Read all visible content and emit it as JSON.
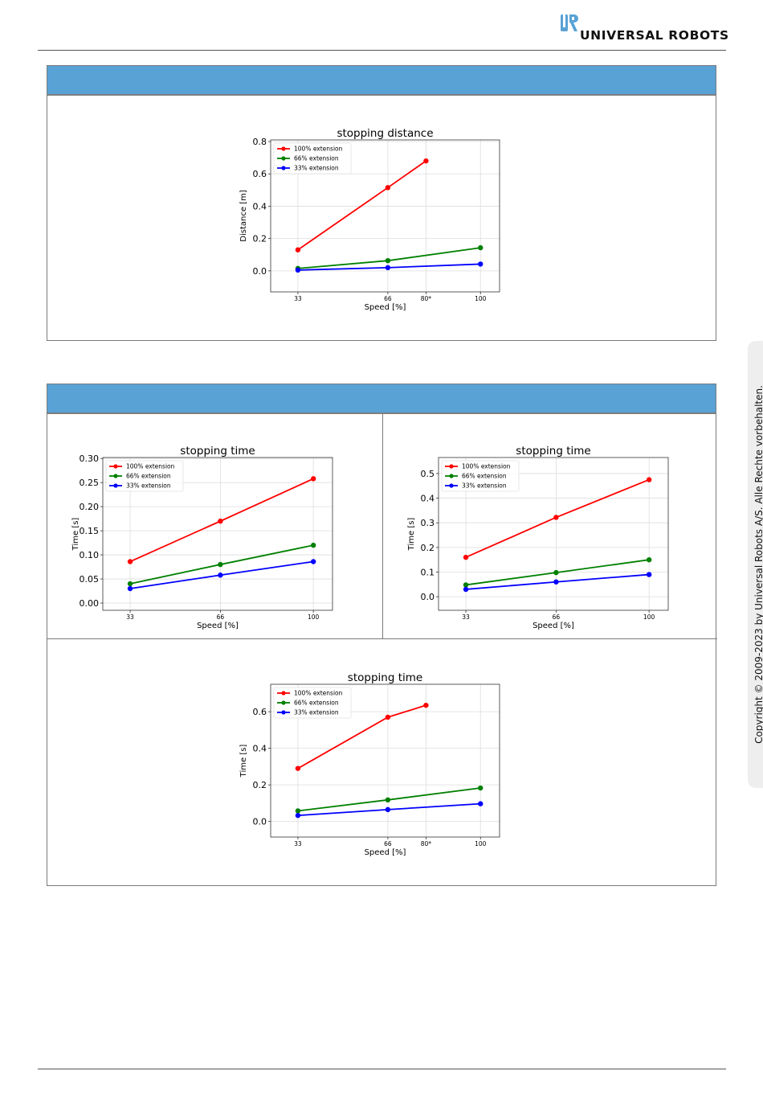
{
  "header": {
    "brand": "UNIVERSAL ROBOTS",
    "logo_icon": "ur-logo-icon",
    "logo_color": "#58a2d6"
  },
  "sidebar": {
    "copyright": "Copyright © 2009-2023 by Universal Robots A/S. Alle Rechte vorbehalten."
  },
  "colors": {
    "panel_header": "#58a2d6",
    "series_100": "#ff0000",
    "series_66": "#008000",
    "series_33": "#0000ff"
  },
  "chart_data": [
    {
      "id": "distance",
      "type": "line",
      "title": "stopping distance",
      "xlabel": "Speed [%]",
      "ylabel": "Distance [m]",
      "xlim": [
        23,
        107
      ],
      "ylim": [
        -0.13,
        0.81
      ],
      "xticks": [
        33,
        66,
        80,
        100
      ],
      "xtick_labels": [
        "33",
        "66",
        "80*",
        "100"
      ],
      "yticks": [
        0.0,
        0.2,
        0.4,
        0.6,
        0.8
      ],
      "ytick_labels": [
        "0.0",
        "0.2",
        "0.4",
        "0.6",
        "0.8"
      ],
      "grid": true,
      "legend": "top-left",
      "series": [
        {
          "name": "100% extension",
          "color": "#ff0000",
          "x": [
            33,
            66,
            80
          ],
          "y": [
            0.13,
            0.515,
            0.68
          ]
        },
        {
          "name": "66% extension",
          "color": "#008000",
          "x": [
            33,
            66,
            100
          ],
          "y": [
            0.015,
            0.063,
            0.143
          ]
        },
        {
          "name": "33% extension",
          "color": "#0000ff",
          "x": [
            33,
            66,
            100
          ],
          "y": [
            0.005,
            0.02,
            0.042
          ]
        }
      ]
    },
    {
      "id": "time_left",
      "type": "line",
      "title": "stopping time",
      "xlabel": "Speed [%]",
      "ylabel": "Time [s]",
      "xlim": [
        23,
        107
      ],
      "ylim": [
        -0.015,
        0.302
      ],
      "xticks": [
        33,
        66,
        100
      ],
      "xtick_labels": [
        "33",
        "66",
        "100"
      ],
      "yticks": [
        0.0,
        0.05,
        0.1,
        0.15,
        0.2,
        0.25,
        0.3
      ],
      "ytick_labels": [
        "0.00",
        "0.05",
        "0.10",
        "0.15",
        "0.20",
        "0.25",
        "0.30"
      ],
      "grid": true,
      "legend": "top-left",
      "series": [
        {
          "name": "100% extension",
          "color": "#ff0000",
          "x": [
            33,
            66,
            100
          ],
          "y": [
            0.086,
            0.17,
            0.258
          ]
        },
        {
          "name": "66% extension",
          "color": "#008000",
          "x": [
            33,
            66,
            100
          ],
          "y": [
            0.04,
            0.08,
            0.12
          ]
        },
        {
          "name": "33% extension",
          "color": "#0000ff",
          "x": [
            33,
            66,
            100
          ],
          "y": [
            0.03,
            0.058,
            0.086
          ]
        }
      ]
    },
    {
      "id": "time_right",
      "type": "line",
      "title": "stopping time",
      "xlabel": "Speed [%]",
      "ylabel": "Time [s]",
      "xlim": [
        23,
        107
      ],
      "ylim": [
        -0.055,
        0.565
      ],
      "xticks": [
        33,
        66,
        100
      ],
      "xtick_labels": [
        "33",
        "66",
        "100"
      ],
      "yticks": [
        0.0,
        0.1,
        0.2,
        0.3,
        0.4,
        0.5
      ],
      "ytick_labels": [
        "0.0",
        "0.1",
        "0.2",
        "0.3",
        "0.4",
        "0.5"
      ],
      "grid": true,
      "legend": "top-left",
      "series": [
        {
          "name": "100% extension",
          "color": "#ff0000",
          "x": [
            33,
            66,
            100
          ],
          "y": [
            0.16,
            0.322,
            0.475
          ]
        },
        {
          "name": "66% extension",
          "color": "#008000",
          "x": [
            33,
            66,
            100
          ],
          "y": [
            0.048,
            0.098,
            0.15
          ]
        },
        {
          "name": "33% extension",
          "color": "#0000ff",
          "x": [
            33,
            66,
            100
          ],
          "y": [
            0.03,
            0.06,
            0.09
          ]
        }
      ]
    },
    {
      "id": "time_bottom",
      "type": "line",
      "title": "stopping time",
      "xlabel": "Speed [%]",
      "ylabel": "Time [s]",
      "xlim": [
        23,
        107
      ],
      "ylim": [
        -0.085,
        0.75
      ],
      "xticks": [
        33,
        66,
        80,
        100
      ],
      "xtick_labels": [
        "33",
        "66",
        "80*",
        "100"
      ],
      "yticks": [
        0.0,
        0.2,
        0.4,
        0.6
      ],
      "ytick_labels": [
        "0.0",
        "0.2",
        "0.4",
        "0.6"
      ],
      "grid": true,
      "legend": "top-left",
      "series": [
        {
          "name": "100% extension",
          "color": "#ff0000",
          "x": [
            33,
            66,
            80
          ],
          "y": [
            0.29,
            0.57,
            0.635
          ]
        },
        {
          "name": "66% extension",
          "color": "#008000",
          "x": [
            33,
            66,
            100
          ],
          "y": [
            0.058,
            0.118,
            0.183
          ]
        },
        {
          "name": "33% extension",
          "color": "#0000ff",
          "x": [
            33,
            66,
            100
          ],
          "y": [
            0.033,
            0.065,
            0.097
          ]
        }
      ]
    }
  ]
}
